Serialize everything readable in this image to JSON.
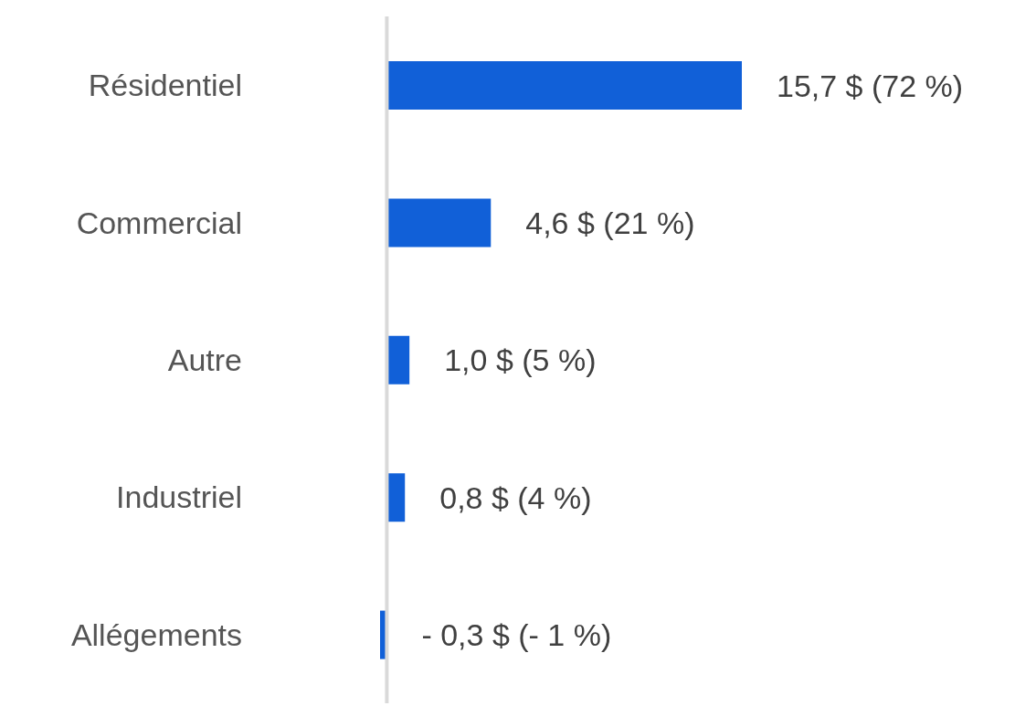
{
  "chart_data": {
    "type": "bar",
    "orientation": "horizontal",
    "categories": [
      "Résidentiel",
      "Commercial",
      "Autre",
      "Industriel",
      "Allégements"
    ],
    "values": [
      15.7,
      4.6,
      1.0,
      0.8,
      -0.3
    ],
    "value_labels": [
      "15,7 $ (72 %)",
      "4,6 $ (21 %)",
      "1,0 $ (5 %)",
      "0,8 $ (4 %)",
      "- 0,3 $ (- 1 %)"
    ],
    "color": "#1160d8"
  }
}
